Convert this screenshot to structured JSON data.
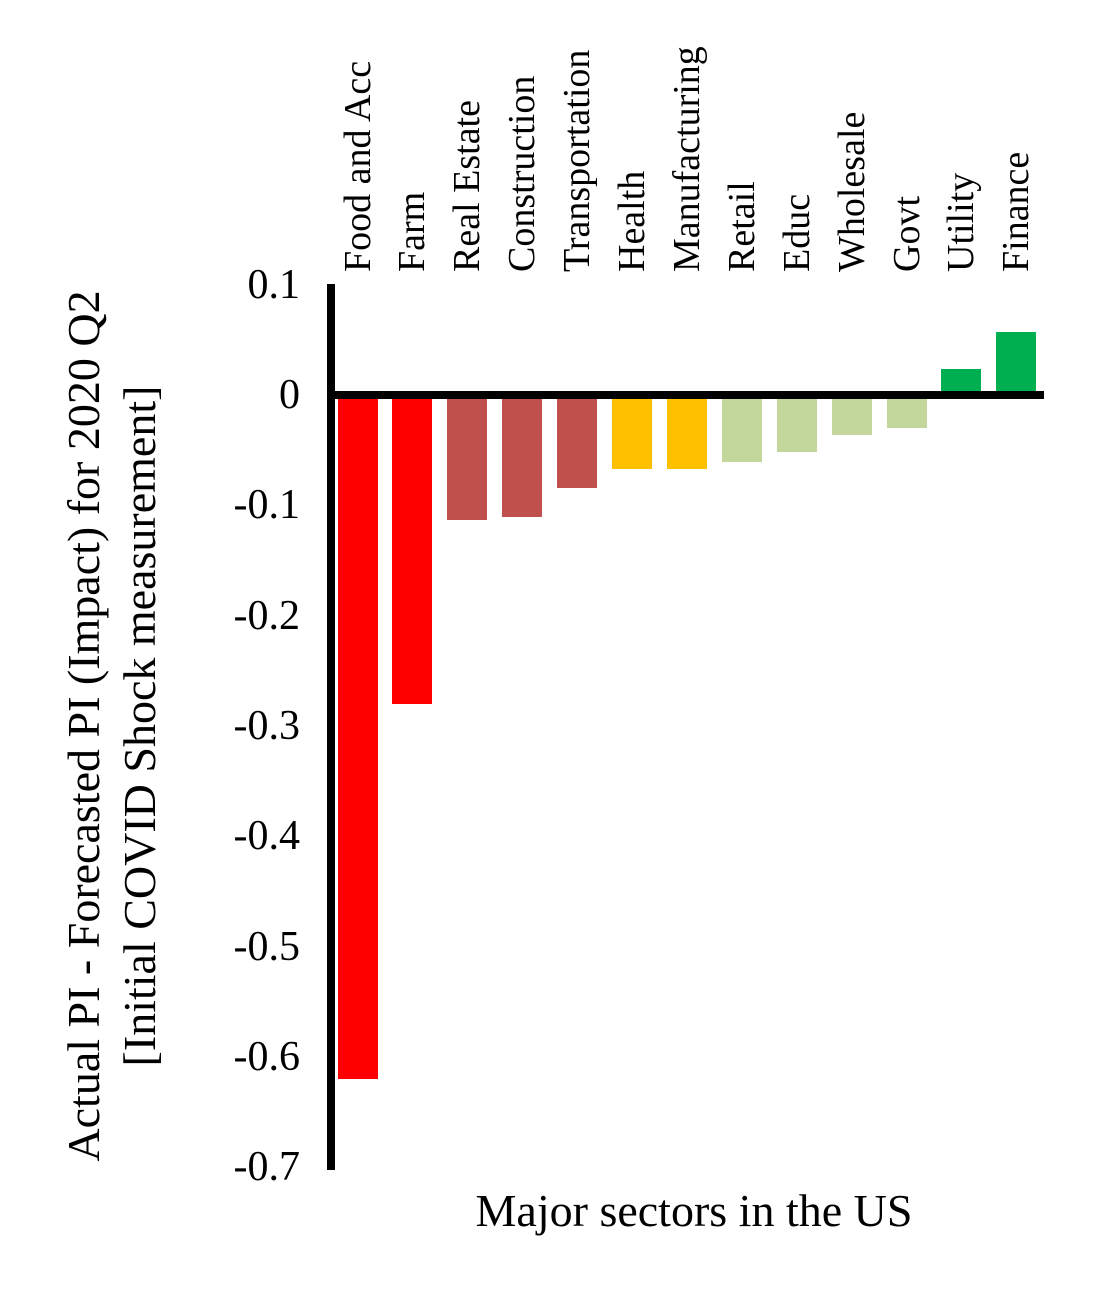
{
  "chart_data": {
    "type": "bar",
    "title": "",
    "xlabel": "Major sectors in the US",
    "ylabel": "Actual PI - Forecasted PI (Impact) for 2020 Q2 [Initial COVID Shock measurement]",
    "ylabel_lines": [
      "Actual PI - Forecasted PI (Impact) for 2020 Q2",
      "[Initial COVID Shock measurement]"
    ],
    "categories": [
      "Food and Acc",
      "Farm",
      "Real Estate",
      "Construction",
      "Transportation",
      "Health",
      "Manufacturing",
      "Retail",
      "Educ",
      "Wholesale",
      "Govt",
      "Utility",
      "Finance"
    ],
    "values": [
      -0.62,
      -0.28,
      -0.113,
      -0.111,
      -0.084,
      -0.067,
      -0.067,
      -0.061,
      -0.052,
      -0.036,
      -0.03,
      0.024,
      0.057
    ],
    "bar_colors": [
      "#FF0000",
      "#FF0000",
      "#C0504D",
      "#C0504D",
      "#C0504D",
      "#FFC000",
      "#FFC000",
      "#C3D69B",
      "#C3D69B",
      "#C3D69B",
      "#C3D69B",
      "#00B050",
      "#00B050"
    ],
    "yticks": [
      0.1,
      0,
      -0.1,
      -0.2,
      -0.3,
      -0.4,
      -0.5,
      -0.6,
      -0.7
    ],
    "ytick_labels": [
      "0.1",
      "0",
      "-0.1",
      "-0.2",
      "-0.3",
      "-0.4",
      "-0.5",
      "-0.6",
      "-0.7"
    ],
    "ylim": [
      -0.7,
      0.1
    ],
    "grid": false,
    "legend": null,
    "axis_color": "#000000",
    "category_label_position": "top",
    "category_label_rotation_deg": 90
  }
}
